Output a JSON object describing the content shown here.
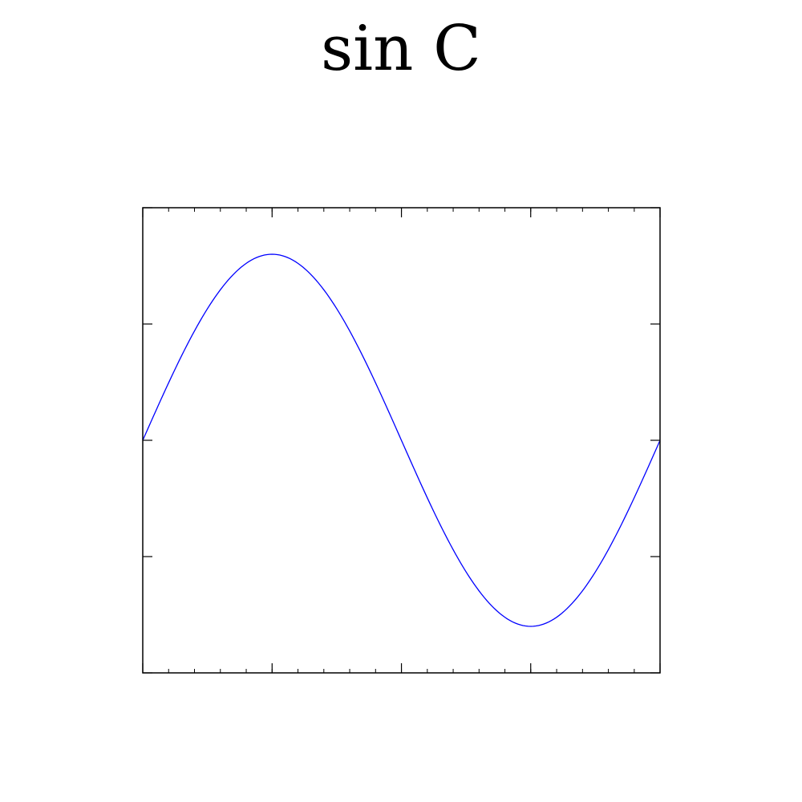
{
  "chart_data": {
    "type": "line",
    "title": "sin C",
    "xlabel": "",
    "ylabel": "",
    "xlim": [
      0,
      6.283
    ],
    "ylim": [
      -1.25,
      1.25
    ],
    "xticks": [
      0,
      1.571,
      3.142,
      4.712,
      6.283
    ],
    "yticks": [
      -1.25,
      -0.625,
      0,
      0.625,
      1.25
    ],
    "tick_labels_visible": false,
    "grid": false,
    "legend": "none",
    "series": [
      {
        "color": "#0000ff",
        "x": [
          0,
          0.314,
          0.628,
          0.942,
          1.257,
          1.571,
          1.885,
          2.199,
          2.513,
          2.827,
          3.142,
          3.456,
          3.77,
          4.084,
          4.398,
          4.712,
          5.027,
          5.341,
          5.655,
          5.969,
          6.283
        ],
        "y": [
          0,
          0.309,
          0.588,
          0.809,
          0.951,
          1.0,
          0.951,
          0.809,
          0.588,
          0.309,
          0,
          -0.309,
          -0.588,
          -0.809,
          -0.951,
          -1.0,
          -0.951,
          -0.809,
          -0.588,
          -0.309,
          0
        ]
      }
    ]
  }
}
